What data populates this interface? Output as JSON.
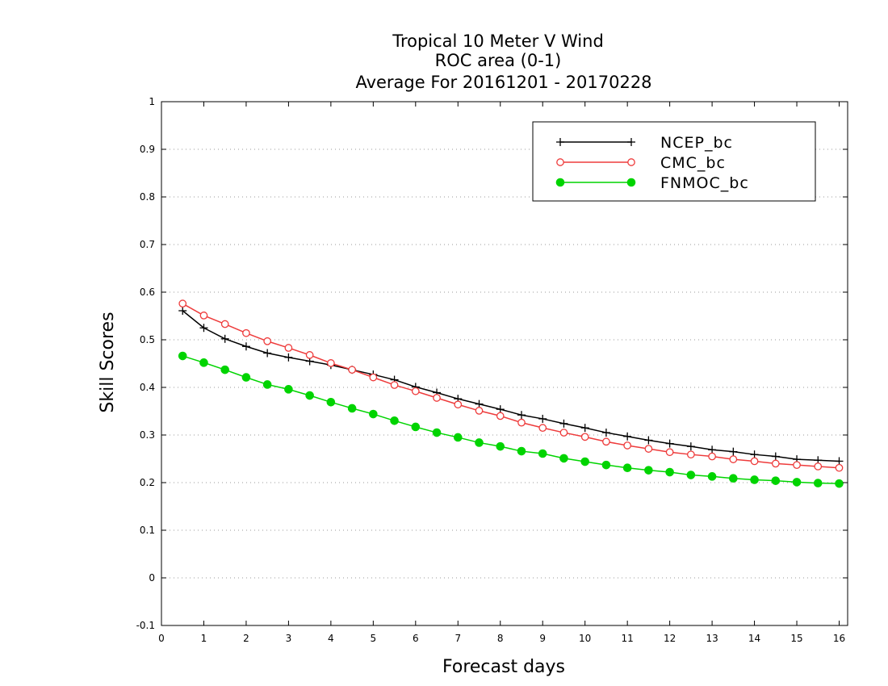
{
  "chart_data": {
    "type": "line",
    "title": [
      "Tropical 10 Meter V Wind",
      "ROC area (0-1)",
      "Average For 20161201 - 20170228"
    ],
    "xlabel": "Forecast days",
    "ylabel": "Skill Scores",
    "xlim": [
      0,
      16.2
    ],
    "ylim": [
      -0.1,
      1
    ],
    "xticks": [
      0,
      1,
      2,
      3,
      4,
      5,
      6,
      7,
      8,
      9,
      10,
      11,
      12,
      13,
      14,
      15,
      16
    ],
    "xtick_labels": [
      "0",
      "1",
      "2",
      "3",
      "4",
      "5",
      "6",
      "7",
      "8",
      "9",
      "10",
      "11",
      "12",
      "13",
      "14",
      "15",
      "16"
    ],
    "yticks": [
      -0.1,
      0,
      0.1,
      0.2,
      0.3,
      0.4,
      0.5,
      0.6,
      0.7,
      0.8,
      0.9,
      1
    ],
    "ytick_labels": [
      "-0.1",
      "0",
      "0.1",
      "0.2",
      "0.3",
      "0.4",
      "0.5",
      "0.6",
      "0.7",
      "0.8",
      "0.9",
      "1"
    ],
    "grid": "horizontal-dotted",
    "legend_position": "top-right",
    "x": [
      0.5,
      1,
      1.5,
      2,
      2.5,
      3,
      3.5,
      4,
      4.5,
      5,
      5.5,
      6,
      6.5,
      7,
      7.5,
      8,
      8.5,
      9,
      9.5,
      10,
      10.5,
      11,
      11.5,
      12,
      12.5,
      13,
      13.5,
      14,
      14.5,
      15,
      15.5,
      16
    ],
    "series": [
      {
        "name": "NCEP_bc",
        "color": "#000000",
        "marker": "plus",
        "values": [
          0.561,
          0.525,
          0.502,
          0.486,
          0.472,
          0.463,
          0.455,
          0.447,
          0.437,
          0.427,
          0.416,
          0.401,
          0.389,
          0.376,
          0.365,
          0.354,
          0.342,
          0.334,
          0.324,
          0.315,
          0.305,
          0.297,
          0.289,
          0.282,
          0.276,
          0.269,
          0.265,
          0.259,
          0.255,
          0.249,
          0.247,
          0.245
        ]
      },
      {
        "name": "CMC_bc",
        "color": "#ee3b3b",
        "marker": "open-circle",
        "values": [
          0.576,
          0.551,
          0.533,
          0.514,
          0.497,
          0.483,
          0.468,
          0.451,
          0.437,
          0.421,
          0.405,
          0.392,
          0.378,
          0.364,
          0.351,
          0.34,
          0.326,
          0.315,
          0.305,
          0.296,
          0.286,
          0.278,
          0.271,
          0.264,
          0.259,
          0.255,
          0.249,
          0.245,
          0.24,
          0.237,
          0.234,
          0.231
        ]
      },
      {
        "name": "FNMOC_bc",
        "color": "#00d400",
        "marker": "filled-circle",
        "values": [
          0.466,
          0.452,
          0.437,
          0.421,
          0.406,
          0.396,
          0.383,
          0.369,
          0.356,
          0.344,
          0.33,
          0.317,
          0.305,
          0.295,
          0.284,
          0.276,
          0.266,
          0.261,
          0.251,
          0.244,
          0.237,
          0.231,
          0.226,
          0.222,
          0.216,
          0.213,
          0.209,
          0.206,
          0.204,
          0.201,
          0.199,
          0.198
        ]
      }
    ]
  }
}
